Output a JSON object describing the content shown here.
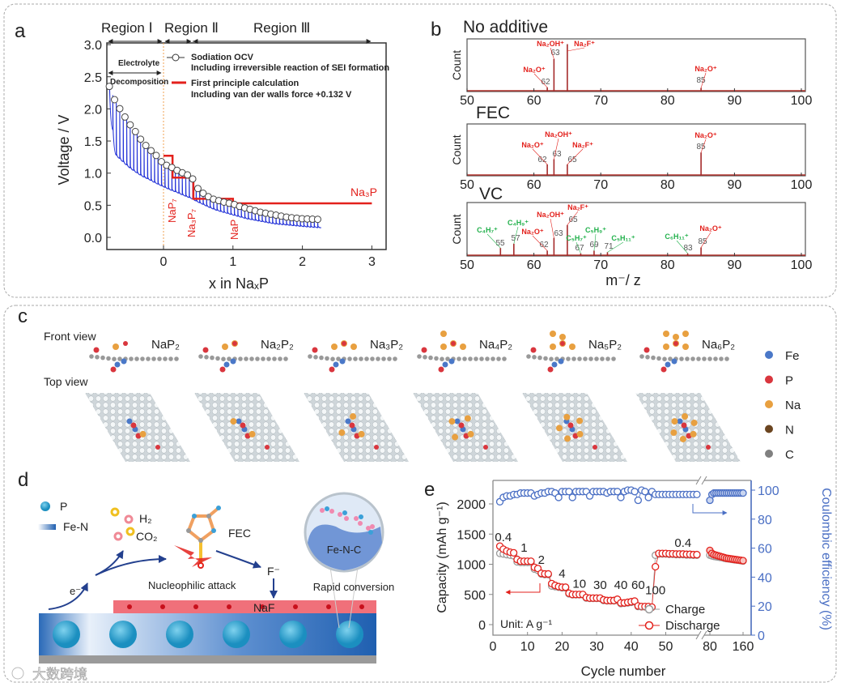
{
  "panels": {
    "a": "a",
    "b": "b",
    "c": "c",
    "d": "d",
    "e": "e"
  },
  "chart_data": [
    {
      "id": "a",
      "type": "line",
      "xlabel": "x in NaₓP",
      "ylabel": "Voltage / V",
      "xlim": [
        -0.82,
        3.2
      ],
      "ylim": [
        -0.2,
        3.1
      ],
      "xticks": [
        0,
        1,
        2,
        3
      ],
      "yticks": [
        "0.0",
        "0.5",
        "1.0",
        "1.5",
        "2.0",
        "2.5",
        "3.0"
      ],
      "regions": [
        "Region Ⅰ",
        "Region Ⅱ",
        "Region Ⅲ"
      ],
      "annotation_electrolyte": "Electrolyte",
      "annotation_decomposition": "Decomposition",
      "legend": [
        {
          "name": "Sodiation OCV",
          "note": "Including irreversible reaction of SEI formation",
          "color": "#333333"
        },
        {
          "name": "First principle calculation",
          "note": "Including van der walls force +0.132 V",
          "color": "#e3211c"
        }
      ],
      "phase_labels": [
        "NaP₇",
        "Na₃P₇",
        "NaP",
        "Na₃P"
      ],
      "series": [
        {
          "name": "Sodiation OCV",
          "x": [
            -0.78,
            -0.7,
            -0.6,
            -0.5,
            -0.4,
            -0.3,
            -0.2,
            -0.1,
            0,
            0.1,
            0.2,
            0.3,
            0.4,
            0.5,
            0.6,
            0.7,
            0.8,
            0.9,
            1.0,
            1.1,
            1.2,
            1.3,
            1.4,
            1.5,
            1.6,
            1.7,
            1.8,
            1.9,
            2.0,
            2.1,
            2.25
          ],
          "y": [
            2.35,
            2.13,
            1.95,
            1.78,
            1.64,
            1.48,
            1.37,
            1.27,
            1.14,
            1.1,
            1.04,
            0.99,
            0.95,
            0.75,
            0.66,
            0.6,
            0.57,
            0.54,
            0.52,
            0.48,
            0.45,
            0.42,
            0.39,
            0.37,
            0.35,
            0.33,
            0.31,
            0.3,
            0.29,
            0.285,
            0.28
          ]
        },
        {
          "name": "Discharge trace minimum",
          "x": [
            -0.78,
            -0.7,
            -0.6,
            -0.5,
            -0.4,
            -0.3,
            -0.2,
            -0.1,
            0,
            0.1,
            0.2,
            0.3,
            0.4,
            0.5,
            0.6,
            0.7,
            0.8,
            0.9,
            1.0,
            1.1,
            1.2,
            1.3,
            1.4,
            1.5,
            1.6,
            1.7,
            1.8,
            1.9,
            2.0,
            2.1,
            2.25
          ],
          "y": [
            2.3,
            1.3,
            1.2,
            1.1,
            1.02,
            0.95,
            0.9,
            0.84,
            0.79,
            0.74,
            0.7,
            0.65,
            0.61,
            0.55,
            0.5,
            0.45,
            0.41,
            0.38,
            0.35,
            0.32,
            0.29,
            0.27,
            0.25,
            0.23,
            0.21,
            0.2,
            0.19,
            0.18,
            0.17,
            0.16,
            0.15
          ]
        },
        {
          "name": "First principle calculation",
          "x": [
            0,
            0.13,
            0.13,
            0.43,
            0.43,
            1.0,
            1.0,
            3.0
          ],
          "y": [
            1.27,
            1.27,
            0.93,
            0.93,
            0.6,
            0.6,
            0.53,
            0.53
          ]
        }
      ]
    },
    {
      "id": "b",
      "type": "bar",
      "xlabel": "m⁻/ z",
      "ylabel": "Count",
      "xlim": [
        50,
        101
      ],
      "xticks": [
        50,
        60,
        70,
        80,
        90,
        100
      ],
      "subplots": [
        {
          "title": "No additive",
          "peaks": [
            {
              "mz": 62,
              "rel": 0.08,
              "ion": "Na₂O⁺",
              "color": "#e3211c"
            },
            {
              "mz": 63,
              "rel": 0.62,
              "ion": "Na₂OH⁺",
              "color": "#e3211c"
            },
            {
              "mz": 65,
              "rel": 0.9,
              "ion": "Na₂F⁺",
              "color": "#e3211c",
              "hide_mz": true
            },
            {
              "mz": 85,
              "rel": 0.07,
              "ion": "Na₂O⁺",
              "color": "#e3211c"
            }
          ]
        },
        {
          "title": "FEC",
          "peaks": [
            {
              "mz": 62,
              "rel": 0.22,
              "ion": "Na₂O⁺",
              "color": "#e3211c"
            },
            {
              "mz": 63,
              "rel": 0.32,
              "ion": "Na₂OH⁺",
              "color": "#e3211c"
            },
            {
              "mz": 65,
              "rel": 0.22,
              "ion": "Na₂F⁺",
              "color": "#e3211c"
            },
            {
              "mz": 85,
              "rel": 0.45,
              "ion": "Na₂O⁺",
              "color": "#e3211c"
            }
          ]
        },
        {
          "title": "VC",
          "peaks": [
            {
              "mz": 55,
              "rel": 0.15,
              "ion": "C₄H₇⁺",
              "color": "#22b14c"
            },
            {
              "mz": 57,
              "rel": 0.23,
              "ion": "C₄H₉⁺",
              "color": "#22b14c"
            },
            {
              "mz": 62,
              "rel": 0.1,
              "ion": "Na₂O⁺",
              "color": "#e3211c"
            },
            {
              "mz": 63,
              "rel": 0.34,
              "ion": "Na₂OH⁺",
              "color": "#e3211c"
            },
            {
              "mz": 65,
              "rel": 0.58,
              "ion": "Na₂F⁺",
              "color": "#e3211c"
            },
            {
              "mz": 67,
              "rel": 0.05,
              "ion": "C₅H₇⁺",
              "color": "#22b14c"
            },
            {
              "mz": 69,
              "rel": 0.1,
              "ion": "C₅H₉⁺",
              "color": "#22b14c"
            },
            {
              "mz": 71,
              "rel": 0.07,
              "ion": "C₅H₁₁⁺",
              "color": "#22b14c"
            },
            {
              "mz": 83,
              "rel": 0.05,
              "ion": "C₆H₁₁⁺",
              "color": "#22b14c"
            },
            {
              "mz": 85,
              "rel": 0.16,
              "ion": "Na₂O⁺",
              "color": "#e3211c"
            }
          ]
        }
      ]
    },
    {
      "id": "e",
      "type": "scatter",
      "xlabel": "Cycle number",
      "ylabel": "Capacity (mAh g⁻¹)",
      "ylabel_right": "Coulombic efficiency (%)",
      "xticks": [
        0,
        10,
        20,
        30,
        40,
        50,
        80,
        160
      ],
      "yticks": [
        0,
        500,
        1000,
        1500,
        2000
      ],
      "yticks_right": [
        0,
        20,
        40,
        60,
        80,
        100
      ],
      "axis_break": [
        59,
        80
      ],
      "unit_label": "Unit: A g⁻¹",
      "rate_labels": [
        "0.4",
        "1",
        "2",
        "4",
        "10",
        "30",
        "40",
        "60",
        "100",
        "0.4"
      ],
      "legend": [
        {
          "name": "Charge",
          "color": "#9a9a9a"
        },
        {
          "name": "Discharge",
          "color": "#e3211c"
        }
      ],
      "ce_color": "#4a6fc4",
      "cycles": [
        2,
        3,
        4,
        5,
        6,
        7,
        8,
        9,
        10,
        11,
        12,
        13,
        14,
        15,
        16,
        17,
        18,
        19,
        20,
        21,
        22,
        23,
        24,
        25,
        26,
        27,
        28,
        29,
        30,
        31,
        32,
        33,
        34,
        35,
        36,
        37,
        38,
        39,
        40,
        41,
        42,
        43,
        44,
        45,
        46,
        47,
        48,
        49,
        50,
        51,
        52,
        53,
        54,
        55,
        56,
        57,
        58,
        59
      ],
      "discharge": [
        1300,
        1250,
        1220,
        1200,
        1190,
        1080,
        1050,
        1050,
        1050,
        1050,
        950,
        930,
        850,
        840,
        840,
        680,
        650,
        630,
        620,
        620,
        520,
        500,
        500,
        500,
        500,
        450,
        440,
        440,
        440,
        440,
        410,
        400,
        400,
        400,
        420,
        360,
        360,
        370,
        380,
        390,
        310,
        300,
        300,
        300,
        290,
        960,
        1180,
        1180,
        1180,
        1175,
        1175,
        1170,
        1170,
        1170,
        1165,
        1165,
        1160,
        1160
      ],
      "charge": [
        1180,
        1170,
        1160,
        1150,
        1140,
        1040,
        1030,
        1030,
        1030,
        1030,
        920,
        900,
        840,
        830,
        830,
        640,
        630,
        620,
        610,
        610,
        510,
        495,
        495,
        495,
        495,
        440,
        435,
        435,
        435,
        435,
        400,
        395,
        395,
        395,
        400,
        350,
        355,
        360,
        370,
        380,
        300,
        295,
        295,
        295,
        285,
        1150,
        1170,
        1170,
        1170,
        1165,
        1165,
        1160,
        1160,
        1160,
        1155,
        1155,
        1150,
        1150
      ],
      "ce": [
        92,
        95,
        96,
        96,
        97,
        97,
        98,
        98,
        98,
        98,
        96,
        97,
        98,
        98,
        99,
        99,
        98,
        95,
        99,
        99,
        99,
        95,
        99,
        99,
        99,
        99,
        96,
        99,
        99,
        99,
        99,
        98,
        99,
        99,
        99,
        95,
        99,
        100,
        100,
        99,
        93,
        100,
        99,
        95,
        99,
        97,
        97,
        97,
        97,
        97,
        97,
        97,
        97,
        97,
        97,
        97,
        97,
        97
      ],
      "cycles_after_break": [
        80,
        85,
        90,
        95,
        100,
        105,
        110,
        115,
        120,
        125,
        130,
        135,
        140,
        145,
        150,
        155,
        160
      ],
      "discharge_after_break": [
        1230,
        1180,
        1160,
        1150,
        1140,
        1130,
        1120,
        1110,
        1100,
        1095,
        1090,
        1085,
        1080,
        1075,
        1070,
        1065,
        1060
      ],
      "charge_after_break": [
        1150,
        1140,
        1130,
        1125,
        1120,
        1115,
        1110,
        1100,
        1095,
        1090,
        1085,
        1080,
        1075,
        1070,
        1065,
        1060,
        1055
      ],
      "ce_after_break": [
        93,
        97,
        98,
        98,
        98,
        98,
        98,
        98,
        98,
        98,
        98,
        98,
        98,
        98,
        98,
        98,
        98
      ]
    }
  ],
  "panel_c": {
    "front_view": "Front view",
    "top_view": "Top view",
    "structures": [
      "NaP₂",
      "Na₂P₂",
      "Na₃P₂",
      "Na₄P₂",
      "Na₅P₂",
      "Na₆P₂"
    ],
    "legend": [
      {
        "label": "Fe",
        "color": "#4a78c8"
      },
      {
        "label": "P",
        "color": "#d9363e"
      },
      {
        "label": "Na",
        "color": "#e8a040"
      },
      {
        "label": "N",
        "color": "#6b4520"
      },
      {
        "label": "C",
        "color": "#808080"
      }
    ]
  },
  "panel_d": {
    "legend_p": "P",
    "legend_fen": "Fe-N",
    "h2": "H₂",
    "co2": "CO₂",
    "fec": "FEC",
    "electron": "e⁻",
    "fluoride": "F⁻",
    "nucleophilic": "Nucleophilic attack",
    "naf": "NaF",
    "fenc": "Fe-N-C",
    "rapid": "Rapid conversion"
  },
  "watermark": "大数跨境"
}
